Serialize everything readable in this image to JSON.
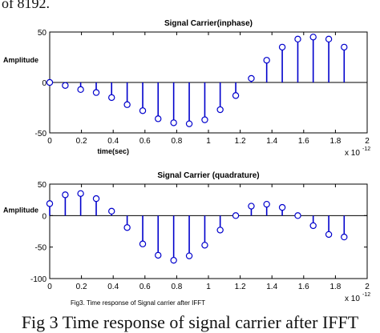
{
  "page": {
    "top_fragment": "of 8192.",
    "caption": "Fig 3 Time response of signal carrier after IFFT"
  },
  "colors": {
    "stem": "#0000cc",
    "axis": "#000000",
    "text": "#000000"
  },
  "chart_data": [
    {
      "type": "stem",
      "title": "Signal Carrier(inphase)",
      "ylabel": "Amplitude",
      "xlabel": "time(sec)",
      "x_multiplier_label": "x 10",
      "x_multiplier_exp": "-12",
      "xlim": [
        0,
        2
      ],
      "ylim": [
        -50,
        50
      ],
      "xticks": [
        "0",
        "0.2",
        "0.4",
        "0.6",
        "0.8",
        "1",
        "1.2",
        "1.4",
        "1.6",
        "1.8",
        "2"
      ],
      "yticks": [
        "50",
        "0",
        "-50"
      ],
      "x": [
        0,
        0.098,
        0.195,
        0.293,
        0.39,
        0.488,
        0.586,
        0.683,
        0.781,
        0.879,
        0.977,
        1.074,
        1.172,
        1.27,
        1.367,
        1.465,
        1.563,
        1.66,
        1.758,
        1.855
      ],
      "values": [
        0,
        -3,
        -7,
        -10,
        -15,
        -22,
        -28,
        -36,
        -40,
        -41,
        -37,
        -27,
        -13,
        4,
        22,
        35,
        43,
        45,
        43,
        35
      ]
    },
    {
      "type": "stem",
      "title": "Signal Carrier (quadrature)",
      "ylabel": "Amplitude",
      "xlabel": "",
      "x_multiplier_label": "x 10",
      "x_multiplier_exp": "-12",
      "xlim": [
        0,
        2
      ],
      "ylim": [
        -100,
        50
      ],
      "xticks": [
        "0",
        "0.2",
        "0.4",
        "0.6",
        "0.8",
        "1",
        "1.2",
        "1.4",
        "1.6",
        "1.8",
        "2"
      ],
      "yticks": [
        "50",
        "0",
        "-50",
        "-100"
      ],
      "x": [
        0,
        0.098,
        0.195,
        0.293,
        0.39,
        0.488,
        0.586,
        0.683,
        0.781,
        0.879,
        0.977,
        1.074,
        1.172,
        1.27,
        1.367,
        1.465,
        1.563,
        1.66,
        1.758,
        1.855
      ],
      "values": [
        19,
        33,
        35,
        27,
        7,
        -19,
        -45,
        -63,
        -71,
        -64,
        -47,
        -23,
        0,
        15,
        18,
        13,
        0,
        -16,
        -30,
        -34
      ],
      "footnote": "Fig3. Time response of Signal carrier after IFFT"
    }
  ]
}
